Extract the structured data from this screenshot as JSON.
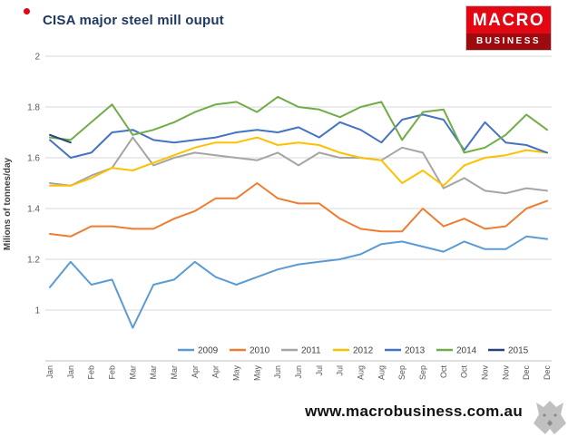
{
  "header": {
    "title": "CISA major steel mill ouput"
  },
  "logo": {
    "line1": "MACRO",
    "line2": "BUSINESS",
    "bg_top": "#E30613",
    "bg_bottom": "#9E0B0F"
  },
  "footer": {
    "website": "www.macrobusiness.com.au"
  },
  "chart_data": {
    "type": "line",
    "title": "CISA major steel mill ouput",
    "ylabel": "Milions of tonnes/day",
    "xlabel": "",
    "ylim": [
      0.8,
      2.0
    ],
    "grid": true,
    "legend_position": "bottom-inside",
    "yticks": [
      {
        "label": "2",
        "value": 2.0
      },
      {
        "label": "1.8",
        "value": 1.8
      },
      {
        "label": "1.6",
        "value": 1.6
      },
      {
        "label": "1.4",
        "value": 1.4
      },
      {
        "label": "1.2",
        "value": 1.2
      },
      {
        "label": "1",
        "value": 1.0
      }
    ],
    "x_labels": [
      "Jan",
      "Jan",
      "Feb",
      "Feb",
      "Mar",
      "Mar",
      "Mar",
      "Apr",
      "Apr",
      "May",
      "May",
      "Jun",
      "Jun",
      "Jul",
      "Jul",
      "Aug",
      "Aug",
      "Sep",
      "Sep",
      "Oct",
      "Oct",
      "Nov",
      "Nov",
      "Dec",
      "Dec"
    ],
    "series": [
      {
        "name": "2009",
        "color": "#5B9BD5",
        "values": [
          1.09,
          1.19,
          1.1,
          1.12,
          0.93,
          1.1,
          1.12,
          1.19,
          1.13,
          1.1,
          1.13,
          1.16,
          1.18,
          1.19,
          1.2,
          1.22,
          1.26,
          1.27,
          1.25,
          1.23,
          1.27,
          1.24,
          1.24,
          1.29,
          1.28
        ]
      },
      {
        "name": "2010",
        "color": "#ED7D31",
        "values": [
          1.3,
          1.29,
          1.33,
          1.33,
          1.32,
          1.32,
          1.36,
          1.39,
          1.44,
          1.44,
          1.5,
          1.44,
          1.42,
          1.42,
          1.36,
          1.32,
          1.31,
          1.31,
          1.4,
          1.33,
          1.36,
          1.32,
          1.33,
          1.4,
          1.43
        ]
      },
      {
        "name": "2011",
        "color": "#A5A5A5",
        "values": [
          1.5,
          1.49,
          1.53,
          1.56,
          1.68,
          1.57,
          1.6,
          1.62,
          1.61,
          1.6,
          1.59,
          1.62,
          1.57,
          1.62,
          1.6,
          1.6,
          1.59,
          1.64,
          1.62,
          1.48,
          1.52,
          1.47,
          1.46,
          1.48,
          1.47
        ]
      },
      {
        "name": "2012",
        "color": "#FFC000",
        "values": [
          1.49,
          1.49,
          1.52,
          1.56,
          1.55,
          1.58,
          1.61,
          1.64,
          1.66,
          1.66,
          1.68,
          1.65,
          1.66,
          1.65,
          1.62,
          1.6,
          1.59,
          1.5,
          1.55,
          1.49,
          1.57,
          1.6,
          1.61,
          1.63,
          1.62
        ]
      },
      {
        "name": "2013",
        "color": "#4472C4",
        "values": [
          1.67,
          1.6,
          1.62,
          1.7,
          1.71,
          1.67,
          1.66,
          1.67,
          1.68,
          1.7,
          1.71,
          1.7,
          1.72,
          1.68,
          1.74,
          1.71,
          1.66,
          1.75,
          1.77,
          1.75,
          1.63,
          1.74,
          1.66,
          1.65,
          1.62
        ]
      },
      {
        "name": "2014",
        "color": "#70AD47",
        "values": [
          1.68,
          1.67,
          1.74,
          1.81,
          1.69,
          1.71,
          1.74,
          1.78,
          1.81,
          1.82,
          1.78,
          1.84,
          1.8,
          1.79,
          1.76,
          1.8,
          1.82,
          1.67,
          1.78,
          1.79,
          1.62,
          1.64,
          1.69,
          1.77,
          1.71
        ]
      },
      {
        "name": "2015",
        "color": "#264478",
        "values": [
          1.69,
          1.66,
          null,
          null,
          null,
          null,
          null,
          null,
          null,
          null,
          null,
          null,
          null,
          null,
          null,
          null,
          null,
          null,
          null,
          null,
          null,
          null,
          null,
          null,
          null
        ]
      }
    ]
  }
}
